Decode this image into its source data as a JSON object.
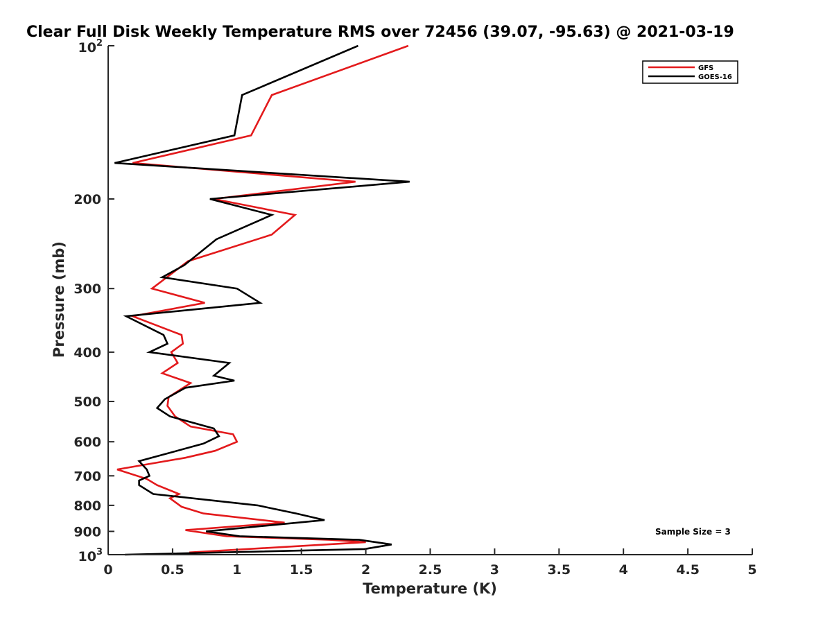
{
  "chart_data": {
    "type": "line",
    "title": "Clear Full Disk Weekly Temperature RMS over 72456 (39.07, -95.63) @ 2021-03-19",
    "xlabel": "Temperature (K)",
    "ylabel": "Pressure (mb)",
    "xlim": [
      0,
      5
    ],
    "ylim": [
      100,
      1000
    ],
    "y_scale": "log",
    "y_reversed": true,
    "grid": false,
    "legend_position": "top-right",
    "x_ticks": [
      "0",
      "0.5",
      "1",
      "1.5",
      "2",
      "2.5",
      "3",
      "3.5",
      "4",
      "4.5",
      "5"
    ],
    "y_ticks": [
      {
        "value": 100,
        "base": "10",
        "exp": "2"
      },
      {
        "value": 200,
        "label": "200"
      },
      {
        "value": 300,
        "label": "300"
      },
      {
        "value": 400,
        "label": "400"
      },
      {
        "value": 500,
        "label": "500"
      },
      {
        "value": 600,
        "label": "600"
      },
      {
        "value": 700,
        "label": "700"
      },
      {
        "value": 800,
        "label": "800"
      },
      {
        "value": 900,
        "label": "900"
      },
      {
        "value": 1000,
        "base": "10",
        "exp": "3"
      }
    ],
    "series": [
      {
        "name": "GFS",
        "color": "#e31a1c",
        "points": [
          [
            2.33,
            100
          ],
          [
            1.27,
            125
          ],
          [
            1.11,
            150
          ],
          [
            0.19,
            170
          ],
          [
            1.92,
            185
          ],
          [
            0.82,
            200
          ],
          [
            1.45,
            215
          ],
          [
            1.27,
            235
          ],
          [
            0.62,
            265
          ],
          [
            0.34,
            300
          ],
          [
            0.75,
            320
          ],
          [
            0.19,
            340
          ],
          [
            0.57,
            370
          ],
          [
            0.58,
            385
          ],
          [
            0.49,
            400
          ],
          [
            0.54,
            420
          ],
          [
            0.42,
            440
          ],
          [
            0.64,
            460
          ],
          [
            0.47,
            490
          ],
          [
            0.46,
            510
          ],
          [
            0.52,
            535
          ],
          [
            0.64,
            560
          ],
          [
            0.97,
            580
          ],
          [
            1.0,
            600
          ],
          [
            0.83,
            625
          ],
          [
            0.6,
            645
          ],
          [
            0.07,
            680
          ],
          [
            0.3,
            710
          ],
          [
            0.38,
            730
          ],
          [
            0.55,
            760
          ],
          [
            0.48,
            775
          ],
          [
            0.57,
            805
          ],
          [
            0.74,
            830
          ],
          [
            1.37,
            865
          ],
          [
            0.6,
            895
          ],
          [
            0.92,
            920
          ],
          [
            1.72,
            935
          ],
          [
            2.0,
            945
          ],
          [
            0.63,
            990
          ]
        ]
      },
      {
        "name": "GOES-16",
        "color": "#000000",
        "points": [
          [
            1.94,
            100
          ],
          [
            1.04,
            125
          ],
          [
            0.98,
            150
          ],
          [
            0.05,
            170
          ],
          [
            2.34,
            185
          ],
          [
            0.79,
            200
          ],
          [
            1.27,
            215
          ],
          [
            0.84,
            240
          ],
          [
            0.59,
            270
          ],
          [
            0.42,
            285
          ],
          [
            1.0,
            300
          ],
          [
            1.18,
            320
          ],
          [
            0.14,
            340
          ],
          [
            0.43,
            370
          ],
          [
            0.46,
            385
          ],
          [
            0.32,
            400
          ],
          [
            0.94,
            420
          ],
          [
            0.82,
            445
          ],
          [
            0.98,
            455
          ],
          [
            0.6,
            470
          ],
          [
            0.44,
            495
          ],
          [
            0.38,
            515
          ],
          [
            0.48,
            535
          ],
          [
            0.82,
            565
          ],
          [
            0.86,
            585
          ],
          [
            0.74,
            605
          ],
          [
            0.24,
            655
          ],
          [
            0.3,
            680
          ],
          [
            0.32,
            700
          ],
          [
            0.24,
            715
          ],
          [
            0.24,
            730
          ],
          [
            0.35,
            760
          ],
          [
            1.16,
            800
          ],
          [
            1.46,
            830
          ],
          [
            1.68,
            855
          ],
          [
            0.76,
            900
          ],
          [
            1.02,
            920
          ],
          [
            1.95,
            935
          ],
          [
            2.2,
            955
          ],
          [
            1.99,
            975
          ],
          [
            0.13,
            1000
          ]
        ]
      }
    ],
    "annotations": [
      "Sample Size = 3"
    ]
  }
}
